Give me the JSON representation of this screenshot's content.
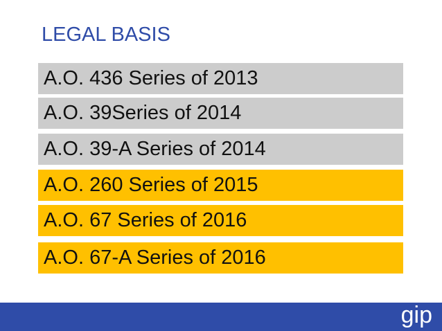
{
  "slide": {
    "title": "LEGAL BASIS",
    "items": [
      {
        "label": "A.O. 436 Series of 2013",
        "color": "#cccccc"
      },
      {
        "label": "A.O. 39Series of 2014",
        "color": "#cccccc"
      },
      {
        "label": "A.O. 39-A Series of 2014",
        "color": "#cccccc"
      },
      {
        "label": "A.O. 260 Series of 2015",
        "color": "#ffc000"
      },
      {
        "label": "A.O. 67 Series of 2016",
        "color": "#ffc000"
      },
      {
        "label": "A.O. 67-A Series of 2016",
        "color": "#ffc000"
      }
    ],
    "footer": {
      "logo_text": "gip",
      "color": "#2f4ca8"
    }
  }
}
